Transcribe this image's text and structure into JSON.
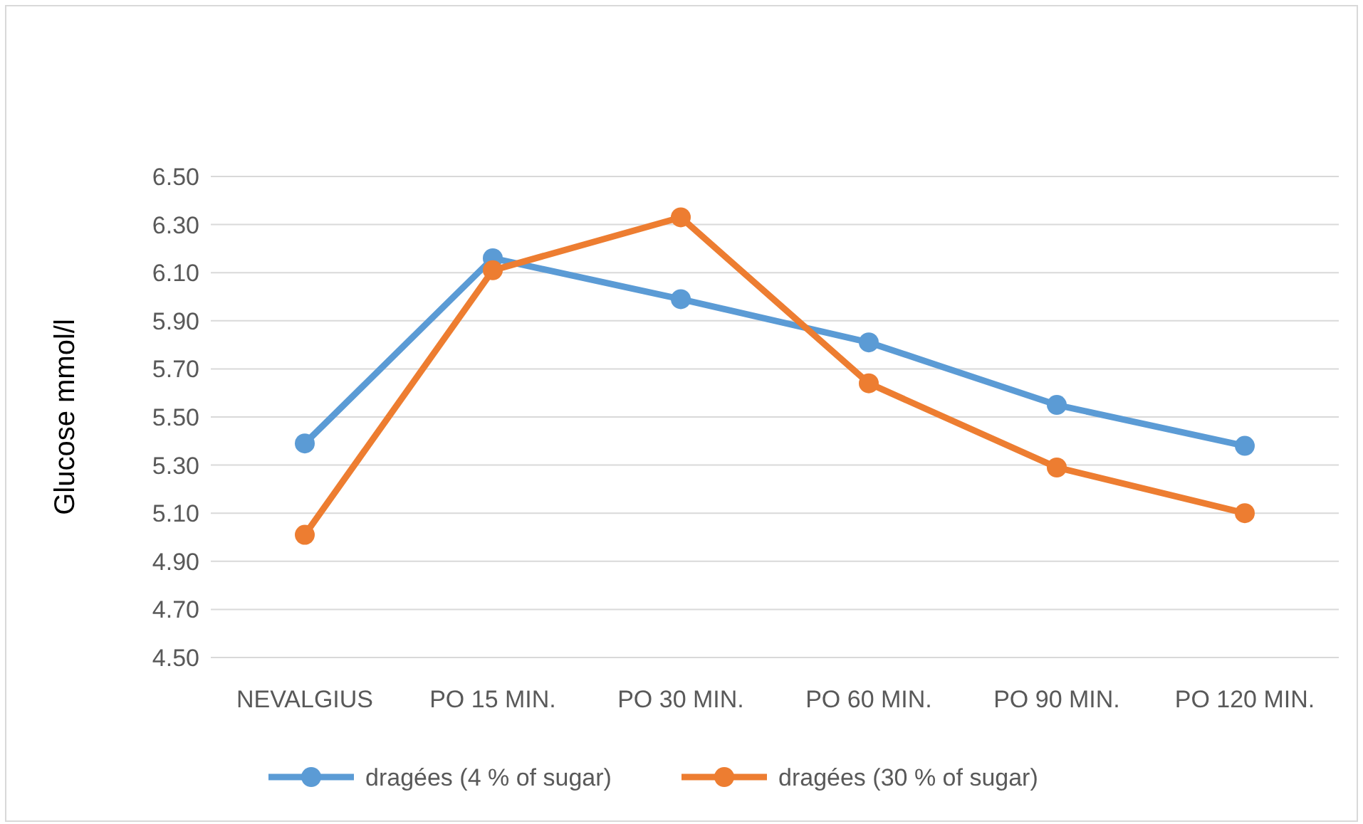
{
  "chart_data": {
    "type": "line",
    "ylabel": "Glucose mmol/l",
    "categories": [
      "NEVALGIUS",
      "PO 15 MIN.",
      "PO 30 MIN.",
      "PO 60 MIN.",
      "PO 90 MIN.",
      "PO 120 MIN."
    ],
    "series": [
      {
        "name": "dragées (4 % of sugar)",
        "color": "#5b9bd5",
        "values": [
          5.39,
          6.16,
          5.99,
          5.81,
          5.55,
          5.38
        ]
      },
      {
        "name": "dragées (30 % of sugar)",
        "color": "#ed7d31",
        "values": [
          5.01,
          6.11,
          6.33,
          5.64,
          5.29,
          5.1
        ]
      }
    ],
    "ylim": [
      4.5,
      6.5
    ],
    "yticks": [
      {
        "value": 4.5,
        "label": "4.50"
      },
      {
        "value": 4.7,
        "label": "4.70"
      },
      {
        "value": 4.9,
        "label": "4.90"
      },
      {
        "value": 5.1,
        "label": "5.10"
      },
      {
        "value": 5.3,
        "label": "5.30"
      },
      {
        "value": 5.5,
        "label": "5.50"
      },
      {
        "value": 5.7,
        "label": "5.70"
      },
      {
        "value": 5.9,
        "label": "5.90"
      },
      {
        "value": 6.1,
        "label": "6.10"
      },
      {
        "value": 6.3,
        "label": "6.30"
      },
      {
        "value": 6.5,
        "label": "6.50"
      }
    ],
    "grid": "y",
    "legend": "bottom",
    "marker": "circle",
    "line_style": "solid"
  }
}
